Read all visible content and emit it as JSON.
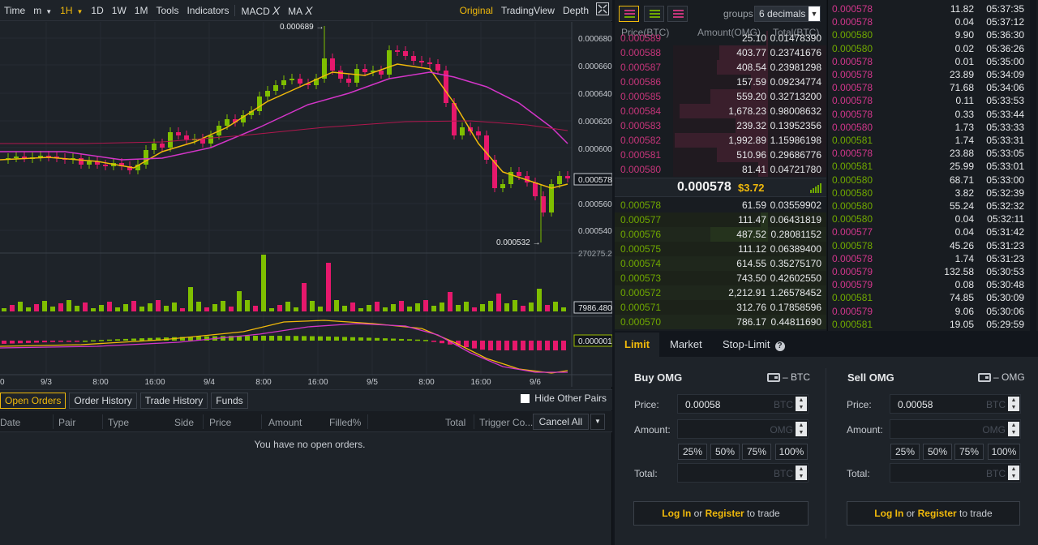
{
  "toolbar": {
    "items": [
      "Time",
      "m",
      "1H",
      "1D",
      "1W",
      "1M",
      "Tools",
      "Indicators"
    ],
    "active": "1H",
    "macd": "MACD",
    "ma": "MA",
    "close_glyph": "X",
    "views": [
      "Original",
      "TradingView",
      "Depth"
    ],
    "active_view": "Original"
  },
  "chart": {
    "price_axis": [
      "0.000680",
      "0.000660",
      "0.000640",
      "0.000620",
      "0.000600",
      "0.000560",
      "0.000540"
    ],
    "current_price_label": "0.000578",
    "high_label": "0.000689",
    "low_label": "0.000532",
    "volume_axis_top": "270275.22",
    "volume_label": "7986.480",
    "macd_label": "0.000001",
    "time_axis": [
      "0",
      "9/3",
      "8:00",
      "16:00",
      "9/4",
      "8:00",
      "16:00",
      "9/5",
      "8:00",
      "16:00",
      "9/6"
    ],
    "colors": {
      "up": "#7fbf00",
      "down": "#e6186c",
      "ma_fast": "#f0b90b",
      "ma_slow": "#d335c8",
      "ma_long": "#b0174e",
      "bg": "#1e2329"
    }
  },
  "orders": {
    "tabs": [
      "Open Orders",
      "Order History",
      "Trade History",
      "Funds"
    ],
    "active_tab": "Open Orders",
    "hide_other_pairs": "Hide Other Pairs",
    "columns": [
      "Date",
      "Pair",
      "Type",
      "Side",
      "Price",
      "Amount",
      "Filled%",
      "Total",
      "Trigger Co..."
    ],
    "cancel_all": "Cancel All",
    "empty": "You have no open orders."
  },
  "orderbook": {
    "groups_label": "groups",
    "groups_value": "6 decimals",
    "columns": [
      "Price(BTC)",
      "Amount(OMG)",
      "Total(BTC)"
    ],
    "asks": [
      {
        "price": "0.000589",
        "amount": "25.10",
        "total": "0.01478390",
        "depth": 0.02
      },
      {
        "price": "0.000588",
        "amount": "403.77",
        "total": "0.23741676",
        "depth": 0.52
      },
      {
        "price": "0.000587",
        "amount": "408.54",
        "total": "0.23981298",
        "depth": 0.55
      },
      {
        "price": "0.000586",
        "amount": "157.59",
        "total": "0.09234774",
        "depth": 0.18
      },
      {
        "price": "0.000585",
        "amount": "559.20",
        "total": "0.32713200",
        "depth": 0.62
      },
      {
        "price": "0.000584",
        "amount": "1,678.23",
        "total": "0.98008632",
        "depth": 0.95
      },
      {
        "price": "0.000583",
        "amount": "239.32",
        "total": "0.13952356",
        "depth": 0.35
      },
      {
        "price": "0.000582",
        "amount": "1,992.89",
        "total": "1.15986198",
        "depth": 1.0
      },
      {
        "price": "0.000581",
        "amount": "510.96",
        "total": "0.29686776",
        "depth": 0.55
      },
      {
        "price": "0.000580",
        "amount": "81.41",
        "total": "0.04721780",
        "depth": 0.1
      }
    ],
    "last_price": "0.000578",
    "last_usd": "$3.72",
    "bids": [
      {
        "price": "0.000578",
        "amount": "61.59",
        "total": "0.03559902",
        "depth": 0.0
      },
      {
        "price": "0.000577",
        "amount": "111.47",
        "total": "0.06431819",
        "depth": 0.08
      },
      {
        "price": "0.000576",
        "amount": "487.52",
        "total": "0.28081152",
        "depth": 0.62
      },
      {
        "price": "0.000575",
        "amount": "111.12",
        "total": "0.06389400",
        "depth": 0.0
      },
      {
        "price": "0.000574",
        "amount": "614.55",
        "total": "0.35275170",
        "depth": 0.0
      },
      {
        "price": "0.000573",
        "amount": "743.50",
        "total": "0.42602550",
        "depth": 0.0
      },
      {
        "price": "0.000572",
        "amount": "2,212.91",
        "total": "1.26578452",
        "depth": 0.0
      },
      {
        "price": "0.000571",
        "amount": "312.76",
        "total": "0.17858596",
        "depth": 0.0
      },
      {
        "price": "0.000570",
        "amount": "786.17",
        "total": "0.44811690",
        "depth": 0.0
      }
    ]
  },
  "trades": [
    {
      "price": "0.000578",
      "amount": "11.82",
      "time": "05:37:35",
      "side": "sell"
    },
    {
      "price": "0.000578",
      "amount": "0.04",
      "time": "05:37:12",
      "side": "sell"
    },
    {
      "price": "0.000580",
      "amount": "9.90",
      "time": "05:36:30",
      "side": "buy"
    },
    {
      "price": "0.000580",
      "amount": "0.02",
      "time": "05:36:26",
      "side": "buy"
    },
    {
      "price": "0.000578",
      "amount": "0.01",
      "time": "05:35:00",
      "side": "sell"
    },
    {
      "price": "0.000578",
      "amount": "23.89",
      "time": "05:34:09",
      "side": "sell"
    },
    {
      "price": "0.000578",
      "amount": "71.68",
      "time": "05:34:06",
      "side": "sell"
    },
    {
      "price": "0.000578",
      "amount": "0.11",
      "time": "05:33:53",
      "side": "sell"
    },
    {
      "price": "0.000578",
      "amount": "0.33",
      "time": "05:33:44",
      "side": "sell"
    },
    {
      "price": "0.000580",
      "amount": "1.73",
      "time": "05:33:33",
      "side": "sell"
    },
    {
      "price": "0.000581",
      "amount": "1.74",
      "time": "05:33:31",
      "side": "buy"
    },
    {
      "price": "0.000578",
      "amount": "23.88",
      "time": "05:33:05",
      "side": "sell"
    },
    {
      "price": "0.000581",
      "amount": "25.99",
      "time": "05:33:01",
      "side": "buy"
    },
    {
      "price": "0.000580",
      "amount": "68.71",
      "time": "05:33:00",
      "side": "buy"
    },
    {
      "price": "0.000580",
      "amount": "3.82",
      "time": "05:32:39",
      "side": "buy"
    },
    {
      "price": "0.000580",
      "amount": "55.24",
      "time": "05:32:32",
      "side": "buy"
    },
    {
      "price": "0.000580",
      "amount": "0.04",
      "time": "05:32:11",
      "side": "buy"
    },
    {
      "price": "0.000577",
      "amount": "0.04",
      "time": "05:31:42",
      "side": "sell"
    },
    {
      "price": "0.000578",
      "amount": "45.26",
      "time": "05:31:23",
      "side": "buy"
    },
    {
      "price": "0.000578",
      "amount": "1.74",
      "time": "05:31:23",
      "side": "sell"
    },
    {
      "price": "0.000579",
      "amount": "132.58",
      "time": "05:30:53",
      "side": "sell"
    },
    {
      "price": "0.000579",
      "amount": "0.08",
      "time": "05:30:48",
      "side": "sell"
    },
    {
      "price": "0.000581",
      "amount": "74.85",
      "time": "05:30:09",
      "side": "buy"
    },
    {
      "price": "0.000579",
      "amount": "9.06",
      "time": "05:30:06",
      "side": "sell"
    },
    {
      "price": "0.000581",
      "amount": "19.05",
      "time": "05:29:59",
      "side": "buy"
    }
  ],
  "form": {
    "tabs": [
      "Limit",
      "Market",
      "Stop-Limit"
    ],
    "help_glyph": "?",
    "active_tab": "Limit",
    "buy": {
      "title": "Buy OMG",
      "wallet": "– BTC",
      "price": "0.00058",
      "price_unit": "BTC",
      "amount_unit": "OMG",
      "total_unit": "BTC"
    },
    "sell": {
      "title": "Sell OMG",
      "wallet": "– OMG",
      "price": "0.00058",
      "price_unit": "BTC",
      "amount_unit": "OMG",
      "total_unit": "BTC"
    },
    "labels": {
      "price": "Price:",
      "amount": "Amount:",
      "total": "Total:"
    },
    "percents": [
      "25%",
      "50%",
      "75%",
      "100%"
    ],
    "login": "Log In",
    "or": "or",
    "register": "Register",
    "to_trade": "to trade"
  }
}
